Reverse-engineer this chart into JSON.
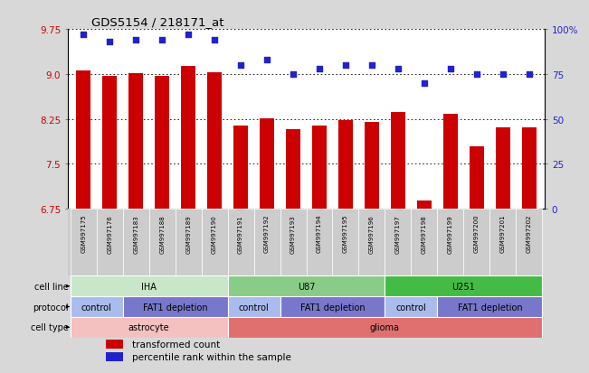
{
  "title": "GDS5154 / 218171_at",
  "samples": [
    "GSM997175",
    "GSM997176",
    "GSM997183",
    "GSM997188",
    "GSM997189",
    "GSM997190",
    "GSM997191",
    "GSM997192",
    "GSM997193",
    "GSM997194",
    "GSM997195",
    "GSM997196",
    "GSM997197",
    "GSM997198",
    "GSM997199",
    "GSM997200",
    "GSM997201",
    "GSM997202"
  ],
  "bar_values": [
    9.06,
    8.96,
    9.01,
    8.96,
    9.13,
    9.02,
    8.14,
    8.26,
    8.08,
    8.13,
    8.22,
    8.2,
    8.36,
    6.88,
    8.33,
    7.79,
    8.11,
    8.1
  ],
  "dot_values": [
    97,
    93,
    94,
    94,
    97,
    94,
    80,
    83,
    75,
    78,
    80,
    80,
    78,
    70,
    78,
    75,
    75,
    75
  ],
  "ylim_left": [
    6.75,
    9.75
  ],
  "ylim_right": [
    0,
    100
  ],
  "yticks_left": [
    6.75,
    7.5,
    8.25,
    9.0,
    9.75
  ],
  "yticks_right": [
    0,
    25,
    50,
    75,
    100
  ],
  "ytick_labels_right": [
    "0",
    "25",
    "50",
    "75",
    "100%"
  ],
  "bar_color": "#cc0000",
  "dot_color": "#2222cc",
  "background_color": "#d8d8d8",
  "plot_bg_color": "#ffffff",
  "xticklabel_bg": "#cccccc",
  "cell_line_row": {
    "label": "cell line",
    "groups": [
      {
        "name": "IHA",
        "start": 0,
        "end": 5,
        "color": "#c8e6c8"
      },
      {
        "name": "U87",
        "start": 6,
        "end": 11,
        "color": "#88cc88"
      },
      {
        "name": "U251",
        "start": 12,
        "end": 17,
        "color": "#44bb44"
      }
    ]
  },
  "protocol_row": {
    "label": "protocol",
    "groups": [
      {
        "name": "control",
        "start": 0,
        "end": 1,
        "color": "#aabbed"
      },
      {
        "name": "FAT1 depletion",
        "start": 2,
        "end": 5,
        "color": "#7777cc"
      },
      {
        "name": "control",
        "start": 6,
        "end": 7,
        "color": "#aabbed"
      },
      {
        "name": "FAT1 depletion",
        "start": 8,
        "end": 11,
        "color": "#7777cc"
      },
      {
        "name": "control",
        "start": 12,
        "end": 13,
        "color": "#aabbed"
      },
      {
        "name": "FAT1 depletion",
        "start": 14,
        "end": 17,
        "color": "#7777cc"
      }
    ]
  },
  "celltype_row": {
    "label": "cell type",
    "groups": [
      {
        "name": "astrocyte",
        "start": 0,
        "end": 5,
        "color": "#f5c0c0"
      },
      {
        "name": "glioma",
        "start": 6,
        "end": 17,
        "color": "#e07070"
      }
    ]
  },
  "legend": [
    {
      "label": "transformed count",
      "color": "#cc0000"
    },
    {
      "label": "percentile rank within the sample",
      "color": "#2222cc"
    }
  ]
}
